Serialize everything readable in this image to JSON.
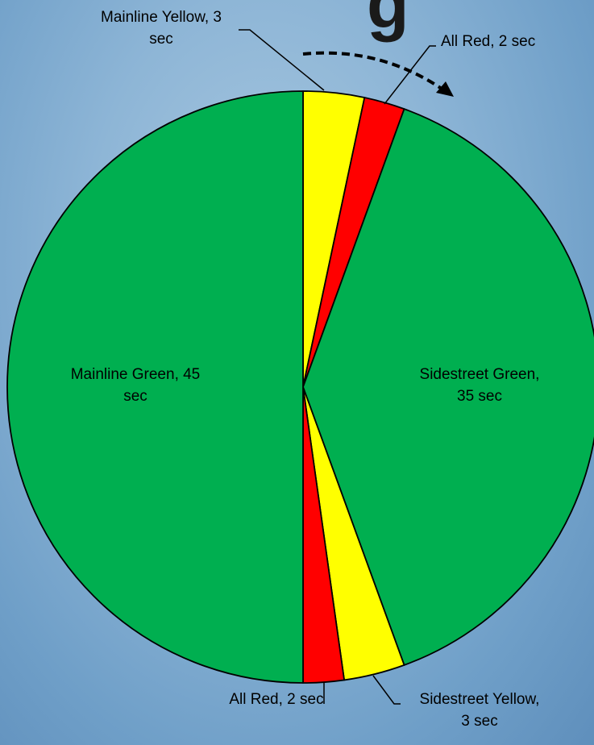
{
  "title_fragment": "g",
  "colors": {
    "green": "#00AF50",
    "yellow": "#FFFF00",
    "red": "#FF0000",
    "outline": "#000000",
    "arrow": "#000000"
  },
  "chart_data": {
    "type": "pie",
    "title": "",
    "unit": "sec",
    "slices": [
      {
        "label": "Mainline Yellow, 3 sec",
        "value": 3,
        "color": "#FFFF00"
      },
      {
        "label": "All Red, 2 sec",
        "value": 2,
        "color": "#FF0000"
      },
      {
        "label": "Sidestreet Green, 35 sec",
        "value": 35,
        "color": "#00AF50"
      },
      {
        "label": "Sidestreet Yellow, 3 sec",
        "value": 3,
        "color": "#FFFF00"
      },
      {
        "label": "All Red, 2 sec",
        "value": 2,
        "color": "#FF0000"
      },
      {
        "label": "Mainline Green, 45 sec",
        "value": 45,
        "color": "#00AF50"
      }
    ],
    "label_lines": [
      [
        "Mainline Yellow, 3",
        "sec"
      ],
      [
        "All Red, 2 sec"
      ],
      [
        "Sidestreet Green,",
        "35 sec"
      ],
      [
        "Sidestreet Yellow,",
        "3 sec"
      ],
      [
        "All Red, 2 sec"
      ],
      [
        "Mainline Green, 45",
        "sec"
      ]
    ],
    "start": "12 o'clock",
    "direction": "clockwise",
    "legend": "none"
  }
}
